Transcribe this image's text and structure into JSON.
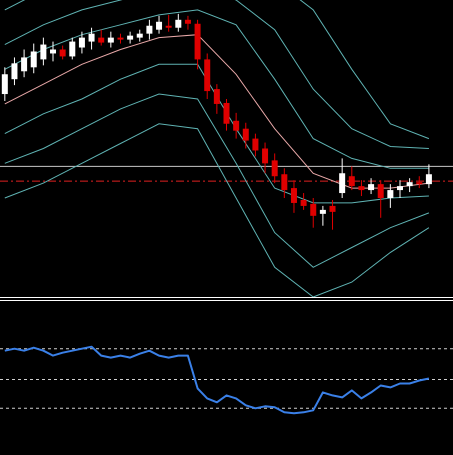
{
  "chart_data": [
    {
      "type": "candlestick",
      "xlim": [
        -0.5,
        46.5
      ],
      "ylim": [
        0,
        300
      ],
      "bull_color": "#ffffff",
      "bear_color": "#e00000",
      "open": [
        205,
        220,
        228,
        232,
        240,
        246,
        250,
        243,
        252,
        258,
        262,
        257,
        262,
        260,
        262,
        266,
        270,
        274,
        272,
        280,
        276,
        240,
        210,
        196,
        178,
        170,
        160,
        150,
        138,
        124,
        110,
        98,
        94,
        84,
        92,
        105,
        122,
        112,
        108,
        114,
        100,
        108,
        112,
        116,
        114
      ],
      "high": [
        232,
        242,
        250,
        256,
        262,
        258,
        254,
        262,
        268,
        272,
        270,
        268,
        266,
        268,
        270,
        280,
        284,
        285,
        286,
        284,
        280,
        246,
        215,
        200,
        186,
        176,
        165,
        156,
        145,
        130,
        118,
        105,
        100,
        92,
        98,
        140,
        132,
        118,
        120,
        118,
        114,
        118,
        120,
        122,
        134
      ],
      "low": [
        198,
        214,
        222,
        226,
        234,
        238,
        240,
        240,
        246,
        250,
        254,
        252,
        256,
        256,
        258,
        260,
        266,
        268,
        268,
        270,
        230,
        200,
        185,
        168,
        160,
        150,
        142,
        125,
        115,
        100,
        85,
        88,
        70,
        72,
        68,
        100,
        108,
        102,
        104,
        80,
        90,
        100,
        106,
        110,
        110
      ],
      "close": [
        225,
        236,
        242,
        248,
        255,
        250,
        243,
        258,
        262,
        266,
        257,
        262,
        260,
        264,
        266,
        274,
        278,
        272,
        280,
        276,
        240,
        208,
        195,
        175,
        168,
        158,
        148,
        135,
        122,
        108,
        95,
        92,
        82,
        88,
        86,
        125,
        112,
        108,
        114,
        100,
        108,
        112,
        116,
        114,
        124
      ],
      "bands_x": [
        0,
        4,
        8,
        12,
        16,
        20,
        24,
        28,
        32,
        36,
        40,
        44
      ],
      "bands": [
        {
          "color": "#e8a8a8",
          "values": [
            195,
            215,
            235,
            250,
            262,
            265,
            225,
            170,
            125,
            110,
            110,
            115
          ]
        },
        {
          "color": "#5fb3b3",
          "values": [
            230,
            250,
            265,
            275,
            285,
            290,
            275,
            220,
            160,
            140,
            130,
            130
          ]
        },
        {
          "color": "#5fb3b3",
          "values": [
            255,
            275,
            290,
            300,
            310,
            315,
            300,
            270,
            210,
            170,
            152,
            150
          ]
        },
        {
          "color": "#5fb3b3",
          "values": [
            290,
            310,
            320,
            330,
            340,
            345,
            340,
            320,
            290,
            230,
            175,
            160
          ]
        },
        {
          "color": "#5fb3b3",
          "values": [
            165,
            185,
            200,
            220,
            235,
            235,
            170,
            110,
            95,
            95,
            100,
            102
          ]
        },
        {
          "color": "#5fb3b3",
          "values": [
            135,
            150,
            170,
            190,
            205,
            200,
            135,
            65,
            30,
            50,
            70,
            85
          ]
        },
        {
          "color": "#5fb3b3",
          "values": [
            100,
            115,
            135,
            155,
            175,
            170,
            100,
            30,
            0,
            15,
            45,
            70
          ]
        }
      ],
      "hlines": [
        {
          "value": 132,
          "color": "#c8c8c8",
          "style": "solid"
        },
        {
          "value": 117,
          "color": "#e02020",
          "style": "dashdot"
        }
      ]
    },
    {
      "type": "line",
      "xlim": [
        -0.5,
        46.5
      ],
      "ylim": [
        0,
        155
      ],
      "color": "#3a80e8",
      "values": [
        105,
        107,
        105,
        108,
        105,
        100,
        103,
        105,
        107,
        109,
        100,
        98,
        100,
        98,
        102,
        105,
        100,
        98,
        100,
        100,
        67,
        57,
        53,
        60,
        57,
        50,
        47,
        49,
        48,
        43,
        42,
        43,
        45,
        63,
        60,
        58,
        65,
        57,
        63,
        70,
        68,
        72,
        72,
        75,
        77
      ],
      "levels": [
        107,
        76,
        47
      ],
      "level_color": "#d0d0d0"
    }
  ]
}
